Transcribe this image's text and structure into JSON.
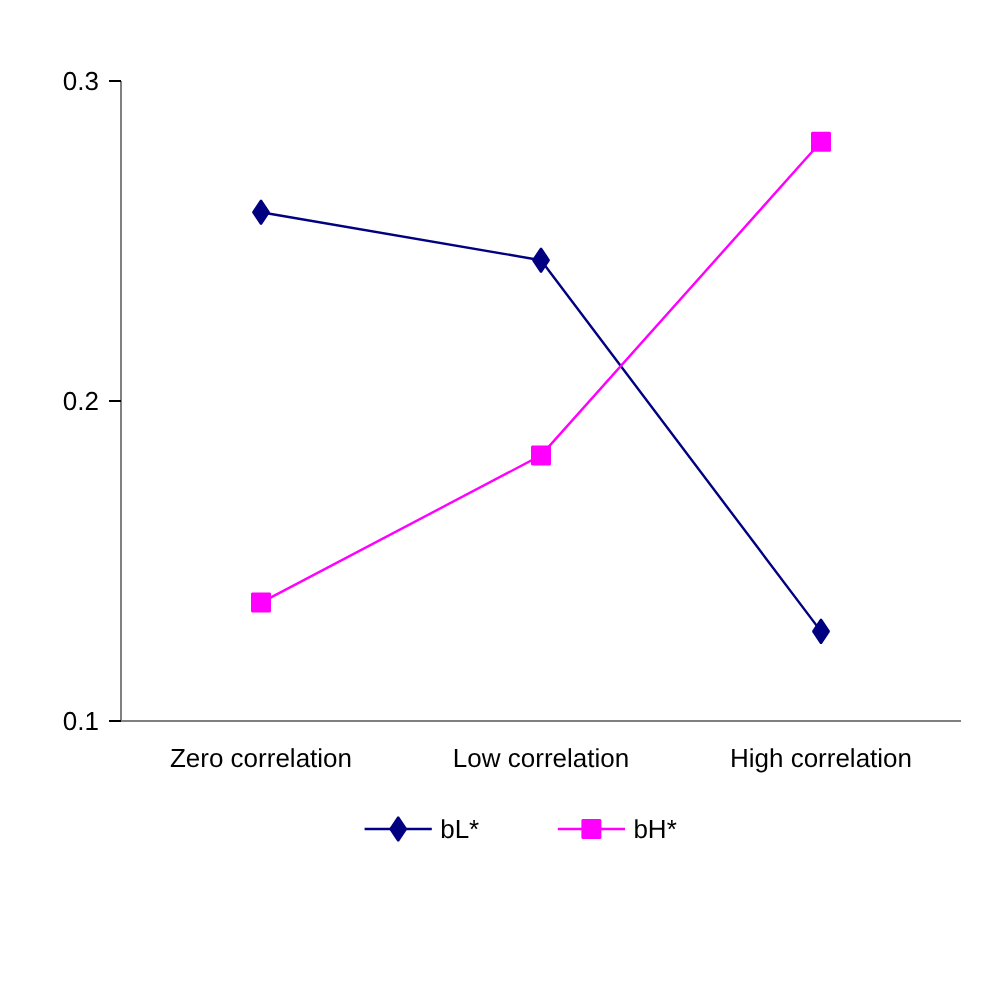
{
  "chart_data": {
    "type": "line",
    "categories": [
      "Zero correlation",
      "Low correlation",
      "High correlation"
    ],
    "series": [
      {
        "name": "bL*",
        "color": "#000080",
        "values": [
          0.259,
          0.244,
          0.128
        ],
        "marker": "diamond"
      },
      {
        "name": "bH*",
        "color": "#ff00ff",
        "values": [
          0.137,
          0.183,
          0.281
        ],
        "marker": "square"
      }
    ],
    "ylim": [
      0.1,
      0.3
    ],
    "yticks": [
      0.1,
      0.2,
      0.3
    ],
    "grid": false,
    "legend": "bottom",
    "line_style": "solid"
  }
}
